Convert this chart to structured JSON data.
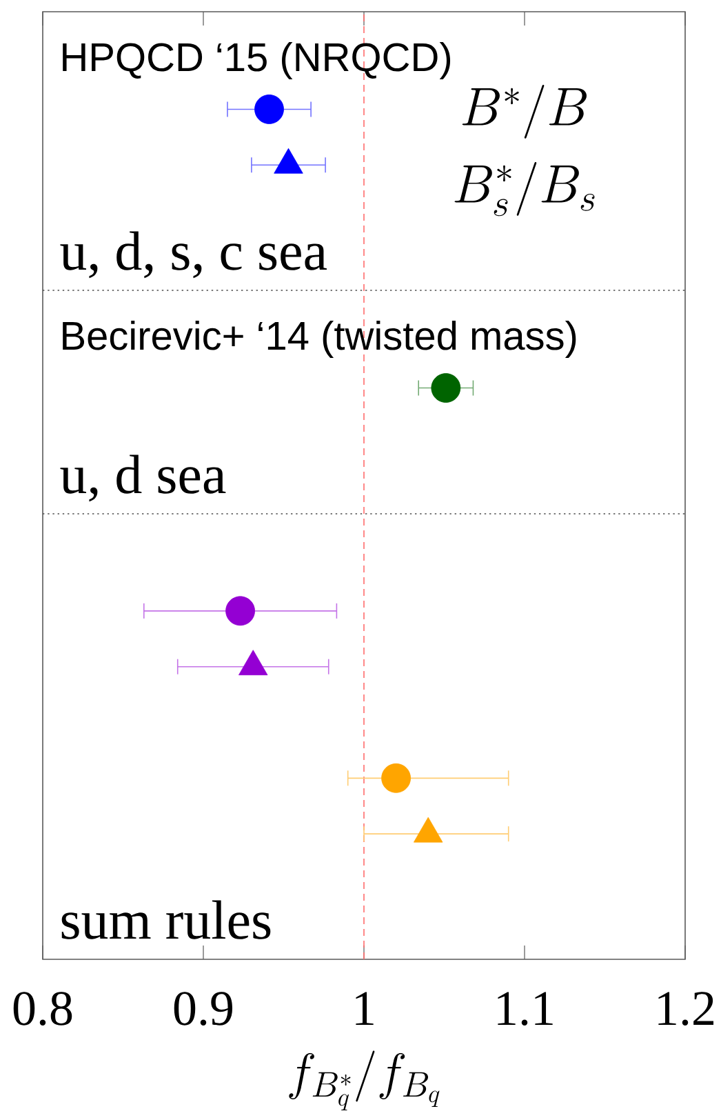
{
  "chart_data": {
    "type": "scatter",
    "orientation": "horizontal",
    "categories": [
      null,
      null,
      null,
      null,
      null,
      null,
      null,
      null,
      null,
      null,
      null,
      null,
      null,
      null,
      null,
      null,
      null,
      null,
      null,
      null,
      null,
      null,
      null,
      null,
      null,
      null,
      null,
      null,
      null,
      null,
      null,
      null,
      null,
      null
    ],
    "series": [
      {
        "color": "#0000ff",
        "marker": "circle",
        "values": [
          null,
          null,
          null,
          0.941,
          null,
          null,
          null,
          null,
          null,
          null,
          null,
          null,
          null,
          null,
          null,
          null,
          null,
          null,
          null,
          null,
          null,
          null,
          null,
          null,
          null,
          null,
          null,
          null,
          null,
          null,
          null,
          null,
          null,
          null
        ],
        "errors": [
          null,
          null,
          null,
          0.026,
          null,
          null,
          null,
          null,
          null,
          null,
          null,
          null,
          null,
          null,
          null,
          null,
          null,
          null,
          null,
          null,
          null,
          null,
          null,
          null,
          null,
          null,
          null,
          null,
          null,
          null,
          null,
          null,
          null,
          null
        ]
      },
      {
        "color": "#0000ff",
        "marker": "triangle",
        "values": [
          null,
          null,
          null,
          null,
          null,
          0.953,
          null,
          null,
          null,
          null,
          null,
          null,
          null,
          null,
          null,
          null,
          null,
          null,
          null,
          null,
          null,
          null,
          null,
          null,
          null,
          null,
          null,
          null,
          null,
          null,
          null,
          null,
          null,
          null
        ],
        "errors": [
          null,
          null,
          null,
          null,
          null,
          0.023,
          null,
          null,
          null,
          null,
          null,
          null,
          null,
          null,
          null,
          null,
          null,
          null,
          null,
          null,
          null,
          null,
          null,
          null,
          null,
          null,
          null,
          null,
          null,
          null,
          null,
          null,
          null,
          null
        ]
      },
      {
        "color": "#006400",
        "marker": "circle",
        "values": [
          null,
          null,
          null,
          null,
          null,
          null,
          null,
          null,
          null,
          null,
          null,
          null,
          null,
          1.051,
          null,
          null,
          null,
          null,
          null,
          null,
          null,
          null,
          null,
          null,
          null,
          null,
          null,
          null,
          null,
          null,
          null,
          null,
          null,
          null
        ],
        "errors": [
          null,
          null,
          null,
          null,
          null,
          null,
          null,
          null,
          null,
          null,
          null,
          null,
          null,
          0.017,
          null,
          null,
          null,
          null,
          null,
          null,
          null,
          null,
          null,
          null,
          null,
          null,
          null,
          null,
          null,
          null,
          null,
          null,
          null,
          null
        ]
      },
      {
        "color": "#9400d3",
        "marker": "circle",
        "values": [
          null,
          null,
          null,
          null,
          null,
          null,
          null,
          null,
          null,
          null,
          null,
          null,
          null,
          null,
          null,
          null,
          null,
          null,
          null,
          null,
          null,
          0.923,
          null,
          null,
          null,
          null,
          null,
          null,
          null,
          null,
          null,
          null,
          null,
          null
        ],
        "errors": [
          null,
          null,
          null,
          null,
          null,
          null,
          null,
          null,
          null,
          null,
          null,
          null,
          null,
          null,
          null,
          null,
          null,
          null,
          null,
          null,
          null,
          0.06,
          null,
          null,
          null,
          null,
          null,
          null,
          null,
          null,
          null,
          null,
          null,
          null
        ]
      },
      {
        "color": "#9400d3",
        "marker": "triangle",
        "values": [
          null,
          null,
          null,
          null,
          null,
          null,
          null,
          null,
          null,
          null,
          null,
          null,
          null,
          null,
          null,
          null,
          null,
          null,
          null,
          null,
          null,
          null,
          null,
          0.931,
          null,
          null,
          null,
          null,
          null,
          null,
          null,
          null,
          null,
          null
        ],
        "errors": [
          null,
          null,
          null,
          null,
          null,
          null,
          null,
          null,
          null,
          null,
          null,
          null,
          null,
          null,
          null,
          null,
          null,
          null,
          null,
          null,
          null,
          null,
          null,
          0.047,
          null,
          null,
          null,
          null,
          null,
          null,
          null,
          null,
          null,
          null
        ]
      },
      {
        "color": "#ffa500",
        "marker": "circle",
        "values": [
          null,
          null,
          null,
          null,
          null,
          null,
          null,
          null,
          null,
          null,
          null,
          null,
          null,
          null,
          null,
          null,
          null,
          null,
          null,
          null,
          null,
          null,
          null,
          null,
          null,
          null,
          null,
          1.02,
          null,
          null,
          null,
          null,
          null,
          null
        ],
        "errors": [
          null,
          null,
          null,
          null,
          null,
          null,
          null,
          null,
          null,
          null,
          null,
          null,
          null,
          null,
          null,
          null,
          null,
          null,
          null,
          null,
          null,
          null,
          null,
          null,
          null,
          null,
          null,
          [
            0.99,
            1.09
          ],
          null,
          null,
          null,
          null,
          null,
          null
        ]
      },
      {
        "color": "#ffa500",
        "marker": "triangle",
        "values": [
          null,
          null,
          null,
          null,
          null,
          null,
          null,
          null,
          null,
          null,
          null,
          null,
          null,
          null,
          null,
          null,
          null,
          null,
          null,
          null,
          null,
          null,
          null,
          null,
          null,
          null,
          null,
          null,
          null,
          1.04,
          null,
          null,
          null,
          null
        ],
        "errors": [
          null,
          null,
          null,
          null,
          null,
          null,
          null,
          null,
          null,
          null,
          null,
          null,
          null,
          null,
          null,
          null,
          null,
          null,
          null,
          null,
          null,
          null,
          null,
          null,
          null,
          null,
          null,
          null,
          null,
          [
            1.0,
            1.09
          ],
          null,
          null,
          null,
          null
        ]
      }
    ],
    "xlim": [
      0.8,
      1.2
    ],
    "xticks": [
      0.8,
      0.9,
      1,
      1.1,
      1.2
    ],
    "tick_labels": "x",
    "xlabel": "f_{B_q^*}/f_{B_q}",
    "ref_lines": [
      {
        "axis": "x",
        "value": 1,
        "color": "#ff6b6b",
        "line_style": "dashed"
      }
    ],
    "annotations": [
      "HPQCD ‘15 (NRQCD)",
      "u, d, s, c sea",
      "Becirevic+ ‘14 (twisted mass)",
      "u, d sea",
      "sum rules",
      "B^*/B",
      "B^*_s/B_s"
    ]
  }
}
